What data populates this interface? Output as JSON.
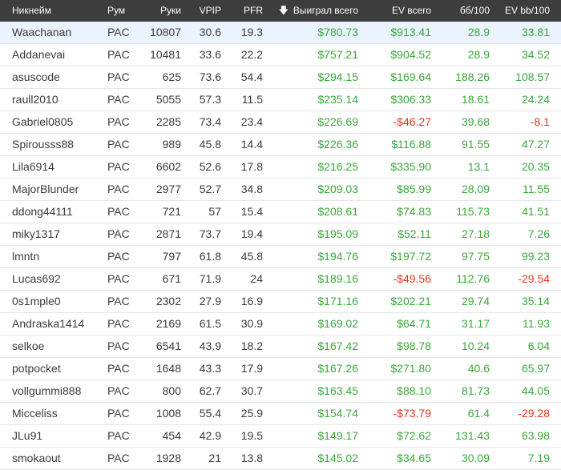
{
  "columns": {
    "nick": "Никнейм",
    "room": "Рум",
    "hands": "Руки",
    "vpip": "VPIP",
    "pfr": "PFR",
    "won": "Выиграл всего",
    "ev": "EV всего",
    "bb100": "бб/100",
    "evbb100": "EV bb/100",
    "sort_icon": "arrow-down-icon"
  },
  "colors": {
    "positive": "#3aa83a",
    "negative": "#e0381c",
    "header_bg": "#3d3d3d",
    "highlight_row": "#eaf3ff"
  },
  "rows": [
    {
      "nick": "Waachanan",
      "room": "PAC",
      "hands": "10807",
      "vpip": "30.6",
      "pfr": "19.3",
      "won": "$780.73",
      "ev": "$913.41",
      "bb100": "28.9",
      "evbb100": "33.81"
    },
    {
      "nick": "Addanevai",
      "room": "PAC",
      "hands": "10481",
      "vpip": "33.6",
      "pfr": "22.2",
      "won": "$757.21",
      "ev": "$904.52",
      "bb100": "28.9",
      "evbb100": "34.52"
    },
    {
      "nick": "asuscode",
      "room": "PAC",
      "hands": "625",
      "vpip": "73.6",
      "pfr": "54.4",
      "won": "$294.15",
      "ev": "$169.64",
      "bb100": "188.26",
      "evbb100": "108.57"
    },
    {
      "nick": "raull2010",
      "room": "PAC",
      "hands": "5055",
      "vpip": "57.3",
      "pfr": "11.5",
      "won": "$235.14",
      "ev": "$306.33",
      "bb100": "18.61",
      "evbb100": "24.24"
    },
    {
      "nick": "Gabriel0805",
      "room": "PAC",
      "hands": "2285",
      "vpip": "73.4",
      "pfr": "23.4",
      "won": "$226.69",
      "ev": "-$46.27",
      "bb100": "39.68",
      "evbb100": "-8.1"
    },
    {
      "nick": "Spirousss88",
      "room": "PAC",
      "hands": "989",
      "vpip": "45.8",
      "pfr": "14.4",
      "won": "$226.36",
      "ev": "$116.88",
      "bb100": "91.55",
      "evbb100": "47.27"
    },
    {
      "nick": "Lila6914",
      "room": "PAC",
      "hands": "6602",
      "vpip": "52.6",
      "pfr": "17.8",
      "won": "$216.25",
      "ev": "$335.90",
      "bb100": "13.1",
      "evbb100": "20.35"
    },
    {
      "nick": "MajorBlunder",
      "room": "PAC",
      "hands": "2977",
      "vpip": "52.7",
      "pfr": "34.8",
      "won": "$209.03",
      "ev": "$85.99",
      "bb100": "28.09",
      "evbb100": "11.55"
    },
    {
      "nick": "ddong44111",
      "room": "PAC",
      "hands": "721",
      "vpip": "57",
      "pfr": "15.4",
      "won": "$208.61",
      "ev": "$74.83",
      "bb100": "115.73",
      "evbb100": "41.51"
    },
    {
      "nick": "miky1317",
      "room": "PAC",
      "hands": "2871",
      "vpip": "73.7",
      "pfr": "19.4",
      "won": "$195.09",
      "ev": "$52.11",
      "bb100": "27.18",
      "evbb100": "7.26"
    },
    {
      "nick": "lmntn",
      "room": "PAC",
      "hands": "797",
      "vpip": "61.8",
      "pfr": "45.8",
      "won": "$194.76",
      "ev": "$197.72",
      "bb100": "97.75",
      "evbb100": "99.23"
    },
    {
      "nick": "Lucas692",
      "room": "PAC",
      "hands": "671",
      "vpip": "71.9",
      "pfr": "24",
      "won": "$189.16",
      "ev": "-$49.56",
      "bb100": "112.76",
      "evbb100": "-29.54"
    },
    {
      "nick": "0s1mple0",
      "room": "PAC",
      "hands": "2302",
      "vpip": "27.9",
      "pfr": "16.9",
      "won": "$171.16",
      "ev": "$202.21",
      "bb100": "29.74",
      "evbb100": "35.14"
    },
    {
      "nick": "Andraska1414",
      "room": "PAC",
      "hands": "2169",
      "vpip": "61.5",
      "pfr": "30.9",
      "won": "$169.02",
      "ev": "$64.71",
      "bb100": "31.17",
      "evbb100": "11.93"
    },
    {
      "nick": "selkoe",
      "room": "PAC",
      "hands": "6541",
      "vpip": "43.9",
      "pfr": "18.2",
      "won": "$167.42",
      "ev": "$98.78",
      "bb100": "10.24",
      "evbb100": "6.04"
    },
    {
      "nick": "potpocket",
      "room": "PAC",
      "hands": "1648",
      "vpip": "43.3",
      "pfr": "17.9",
      "won": "$167.26",
      "ev": "$271.80",
      "bb100": "40.6",
      "evbb100": "65.97"
    },
    {
      "nick": "vollgummi888",
      "room": "PAC",
      "hands": "800",
      "vpip": "62.7",
      "pfr": "30.7",
      "won": "$163.45",
      "ev": "$88.10",
      "bb100": "81.73",
      "evbb100": "44.05"
    },
    {
      "nick": "Micceliss",
      "room": "PAC",
      "hands": "1008",
      "vpip": "55.4",
      "pfr": "25.9",
      "won": "$154.74",
      "ev": "-$73.79",
      "bb100": "61.4",
      "evbb100": "-29.28"
    },
    {
      "nick": "JLu91",
      "room": "PAC",
      "hands": "454",
      "vpip": "42.9",
      "pfr": "19.5",
      "won": "$149.17",
      "ev": "$72.62",
      "bb100": "131.43",
      "evbb100": "63.98"
    },
    {
      "nick": "smokaout",
      "room": "PAC",
      "hands": "1928",
      "vpip": "21",
      "pfr": "13.8",
      "won": "$145.02",
      "ev": "$34.65",
      "bb100": "30.09",
      "evbb100": "7.19"
    }
  ]
}
